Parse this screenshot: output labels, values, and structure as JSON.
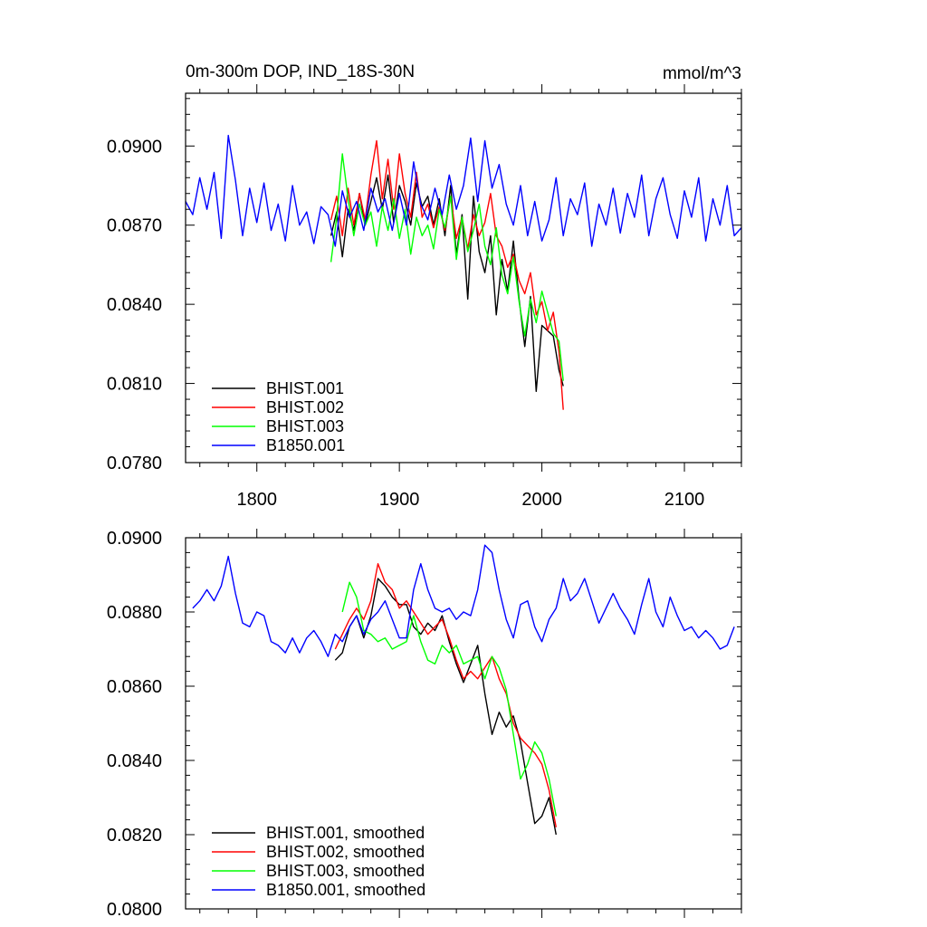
{
  "chart_data": [
    {
      "type": "line",
      "title": "0m-300m DOP, IND_18S-30N",
      "units": "mmol/m^3",
      "xlim": [
        1750,
        2140
      ],
      "ylim": [
        0.078,
        0.092
      ],
      "x_ticks": [
        1800,
        1900,
        2000,
        2100
      ],
      "x_tick_labels": [
        "1800",
        "1900",
        "2000",
        "2100"
      ],
      "y_ticks": [
        0.078,
        0.081,
        0.084,
        0.087,
        0.09
      ],
      "y_tick_labels": [
        "0.0780",
        "0.0810",
        "0.0840",
        "0.0870",
        "0.0900"
      ],
      "grid": false,
      "legend_position": "bottom-left",
      "series": [
        {
          "name": "BHIST.001",
          "color": "#000000",
          "x": [
            1852,
            1856,
            1860,
            1864,
            1868,
            1872,
            1876,
            1880,
            1884,
            1888,
            1892,
            1896,
            1900,
            1904,
            1908,
            1912,
            1916,
            1920,
            1924,
            1928,
            1932,
            1936,
            1940,
            1944,
            1948,
            1952,
            1956,
            1960,
            1964,
            1968,
            1972,
            1976,
            1980,
            1984,
            1988,
            1992,
            1996,
            2000,
            2004,
            2008,
            2012,
            2015
          ],
          "y": [
            0.0866,
            0.0875,
            0.0858,
            0.0876,
            0.0868,
            0.0882,
            0.087,
            0.0879,
            0.0888,
            0.0876,
            0.0889,
            0.0871,
            0.0885,
            0.0879,
            0.087,
            0.0886,
            0.0877,
            0.0881,
            0.087,
            0.088,
            0.0866,
            0.0885,
            0.0859,
            0.0874,
            0.0842,
            0.0881,
            0.086,
            0.0852,
            0.0866,
            0.0836,
            0.0857,
            0.0845,
            0.0864,
            0.0842,
            0.0824,
            0.0843,
            0.0807,
            0.0832,
            0.083,
            0.0828,
            0.0815,
            0.0809
          ]
        },
        {
          "name": "BHIST.002",
          "color": "#ff0000",
          "x": [
            1852,
            1856,
            1860,
            1864,
            1868,
            1872,
            1876,
            1880,
            1884,
            1888,
            1892,
            1896,
            1900,
            1904,
            1908,
            1912,
            1916,
            1920,
            1924,
            1928,
            1932,
            1936,
            1940,
            1944,
            1948,
            1952,
            1956,
            1960,
            1964,
            1968,
            1972,
            1976,
            1980,
            1984,
            1988,
            1992,
            1996,
            2000,
            2004,
            2008,
            2012,
            2015
          ],
          "y": [
            0.0872,
            0.0881,
            0.0866,
            0.0884,
            0.087,
            0.0882,
            0.0872,
            0.0889,
            0.0902,
            0.088,
            0.0895,
            0.0876,
            0.0897,
            0.0882,
            0.0873,
            0.089,
            0.0873,
            0.0878,
            0.0869,
            0.0877,
            0.0868,
            0.0881,
            0.0865,
            0.0873,
            0.0861,
            0.0874,
            0.0866,
            0.0871,
            0.0882,
            0.0866,
            0.0862,
            0.0854,
            0.0859,
            0.0849,
            0.0844,
            0.0852,
            0.0836,
            0.0841,
            0.083,
            0.0837,
            0.0822,
            0.08
          ]
        },
        {
          "name": "BHIST.003",
          "color": "#00ff00",
          "x": [
            1852,
            1856,
            1860,
            1864,
            1868,
            1872,
            1876,
            1880,
            1884,
            1888,
            1892,
            1896,
            1900,
            1904,
            1908,
            1912,
            1916,
            1920,
            1924,
            1928,
            1932,
            1936,
            1940,
            1944,
            1948,
            1952,
            1956,
            1960,
            1964,
            1968,
            1972,
            1976,
            1980,
            1984,
            1988,
            1992,
            1996,
            2000,
            2004,
            2008,
            2012,
            2015
          ],
          "y": [
            0.0856,
            0.0873,
            0.0897,
            0.088,
            0.0866,
            0.0878,
            0.087,
            0.0875,
            0.0862,
            0.0877,
            0.0868,
            0.088,
            0.0865,
            0.0876,
            0.0859,
            0.0873,
            0.0866,
            0.087,
            0.0861,
            0.0876,
            0.0869,
            0.0881,
            0.0857,
            0.0873,
            0.086,
            0.0868,
            0.0878,
            0.0862,
            0.0855,
            0.0869,
            0.0851,
            0.0844,
            0.0858,
            0.0841,
            0.0828,
            0.0842,
            0.0833,
            0.0845,
            0.0837,
            0.0829,
            0.0826,
            0.0811
          ]
        },
        {
          "name": "B1850.001",
          "color": "#0000ff",
          "x": [
            1750,
            1755,
            1760,
            1765,
            1770,
            1775,
            1780,
            1785,
            1790,
            1795,
            1800,
            1805,
            1810,
            1815,
            1820,
            1825,
            1830,
            1835,
            1840,
            1845,
            1850,
            1855,
            1860,
            1865,
            1870,
            1875,
            1880,
            1885,
            1890,
            1895,
            1900,
            1905,
            1910,
            1915,
            1920,
            1925,
            1930,
            1935,
            1940,
            1945,
            1950,
            1955,
            1960,
            1965,
            1970,
            1975,
            1980,
            1985,
            1990,
            1995,
            2000,
            2005,
            2010,
            2015,
            2020,
            2025,
            2030,
            2035,
            2040,
            2045,
            2050,
            2055,
            2060,
            2065,
            2070,
            2075,
            2080,
            2085,
            2090,
            2095,
            2100,
            2105,
            2110,
            2115,
            2120,
            2125,
            2130,
            2135,
            2140
          ],
          "y": [
            0.0879,
            0.0874,
            0.0888,
            0.0876,
            0.089,
            0.0865,
            0.0904,
            0.0887,
            0.0866,
            0.0884,
            0.0871,
            0.0886,
            0.0868,
            0.0878,
            0.0864,
            0.0885,
            0.087,
            0.0875,
            0.0863,
            0.0877,
            0.0874,
            0.0862,
            0.0883,
            0.0873,
            0.0879,
            0.0868,
            0.0884,
            0.0875,
            0.088,
            0.0868,
            0.0882,
            0.087,
            0.0894,
            0.0878,
            0.0872,
            0.0884,
            0.0874,
            0.0889,
            0.0876,
            0.0885,
            0.0903,
            0.0879,
            0.0902,
            0.0884,
            0.0893,
            0.0878,
            0.087,
            0.0885,
            0.0866,
            0.0879,
            0.0864,
            0.0872,
            0.0888,
            0.0866,
            0.088,
            0.0874,
            0.0886,
            0.0862,
            0.0878,
            0.087,
            0.0884,
            0.0867,
            0.0882,
            0.0873,
            0.0889,
            0.0866,
            0.088,
            0.0888,
            0.0874,
            0.0865,
            0.0883,
            0.0873,
            0.0888,
            0.0864,
            0.088,
            0.087,
            0.0885,
            0.0866,
            0.0869
          ]
        }
      ]
    },
    {
      "type": "line",
      "xlim": [
        1750,
        2140
      ],
      "ylim": [
        0.08,
        0.09
      ],
      "x_ticks": [
        1800,
        1900,
        2000,
        2100
      ],
      "x_tick_labels": [],
      "y_ticks": [
        0.08,
        0.082,
        0.084,
        0.086,
        0.088,
        0.09
      ],
      "y_tick_labels": [
        "0.0800",
        "0.0820",
        "0.0840",
        "0.0860",
        "0.0880",
        "0.0900"
      ],
      "grid": false,
      "legend_position": "bottom-left",
      "series": [
        {
          "name": "BHIST.001, smoothed",
          "color": "#000000",
          "x": [
            1855,
            1860,
            1865,
            1870,
            1875,
            1880,
            1885,
            1890,
            1895,
            1900,
            1905,
            1910,
            1915,
            1920,
            1925,
            1930,
            1935,
            1940,
            1945,
            1950,
            1955,
            1960,
            1965,
            1970,
            1975,
            1980,
            1985,
            1990,
            1995,
            2000,
            2005,
            2010
          ],
          "y": [
            0.0867,
            0.0869,
            0.0876,
            0.0879,
            0.0873,
            0.0879,
            0.0889,
            0.0887,
            0.0884,
            0.0882,
            0.0882,
            0.0876,
            0.0874,
            0.0877,
            0.0875,
            0.0879,
            0.0872,
            0.0866,
            0.0861,
            0.0866,
            0.0871,
            0.0858,
            0.0847,
            0.0853,
            0.0849,
            0.0852,
            0.0845,
            0.0834,
            0.0823,
            0.0825,
            0.083,
            0.082
          ]
        },
        {
          "name": "BHIST.002, smoothed",
          "color": "#ff0000",
          "x": [
            1855,
            1860,
            1865,
            1870,
            1875,
            1880,
            1885,
            1890,
            1895,
            1900,
            1905,
            1910,
            1915,
            1920,
            1925,
            1930,
            1935,
            1940,
            1945,
            1950,
            1955,
            1960,
            1965,
            1970,
            1975,
            1980,
            1985,
            1990,
            1995,
            2000,
            2005,
            2010
          ],
          "y": [
            0.087,
            0.0874,
            0.0878,
            0.0881,
            0.0878,
            0.0883,
            0.0893,
            0.0888,
            0.0886,
            0.0881,
            0.0883,
            0.088,
            0.0877,
            0.0874,
            0.0876,
            0.0878,
            0.0873,
            0.0867,
            0.0862,
            0.0864,
            0.0862,
            0.0865,
            0.0868,
            0.0862,
            0.0858,
            0.085,
            0.0846,
            0.0844,
            0.0842,
            0.0839,
            0.0832,
            0.0822
          ]
        },
        {
          "name": "BHIST.003, smoothed",
          "color": "#00ff00",
          "x": [
            1860,
            1865,
            1870,
            1875,
            1880,
            1885,
            1890,
            1895,
            1900,
            1905,
            1910,
            1915,
            1920,
            1925,
            1930,
            1935,
            1940,
            1945,
            1950,
            1955,
            1960,
            1965,
            1970,
            1975,
            1980,
            1985,
            1990,
            1995,
            2000,
            2005,
            2010
          ],
          "y": [
            0.088,
            0.0888,
            0.0884,
            0.0875,
            0.0874,
            0.0872,
            0.0873,
            0.087,
            0.0871,
            0.0872,
            0.0879,
            0.0872,
            0.0867,
            0.0866,
            0.0871,
            0.0869,
            0.0871,
            0.0866,
            0.0867,
            0.0868,
            0.0862,
            0.0868,
            0.0865,
            0.0859,
            0.0847,
            0.0835,
            0.0839,
            0.0845,
            0.0842,
            0.0835,
            0.0825
          ]
        },
        {
          "name": "B1850.001, smoothed",
          "color": "#0000ff",
          "x": [
            1755,
            1760,
            1765,
            1770,
            1775,
            1780,
            1785,
            1790,
            1795,
            1800,
            1805,
            1810,
            1815,
            1820,
            1825,
            1830,
            1835,
            1840,
            1845,
            1850,
            1855,
            1860,
            1865,
            1870,
            1875,
            1880,
            1885,
            1890,
            1895,
            1900,
            1905,
            1910,
            1915,
            1920,
            1925,
            1930,
            1935,
            1940,
            1945,
            1950,
            1955,
            1960,
            1965,
            1970,
            1975,
            1980,
            1985,
            1990,
            1995,
            2000,
            2005,
            2010,
            2015,
            2020,
            2025,
            2030,
            2035,
            2040,
            2045,
            2050,
            2055,
            2060,
            2065,
            2070,
            2075,
            2080,
            2085,
            2090,
            2095,
            2100,
            2105,
            2110,
            2115,
            2120,
            2125,
            2130,
            2135
          ],
          "y": [
            0.0881,
            0.0883,
            0.0886,
            0.0883,
            0.0887,
            0.0895,
            0.0885,
            0.0877,
            0.0876,
            0.088,
            0.0879,
            0.0872,
            0.0871,
            0.0869,
            0.0873,
            0.0869,
            0.0873,
            0.0875,
            0.0872,
            0.0868,
            0.0874,
            0.0872,
            0.0876,
            0.0879,
            0.0874,
            0.0878,
            0.088,
            0.0883,
            0.0878,
            0.0873,
            0.0873,
            0.0886,
            0.0893,
            0.0886,
            0.0881,
            0.088,
            0.0881,
            0.0878,
            0.088,
            0.0879,
            0.0886,
            0.0898,
            0.0896,
            0.0886,
            0.0878,
            0.0873,
            0.0882,
            0.0883,
            0.0876,
            0.0872,
            0.0878,
            0.0881,
            0.0889,
            0.0883,
            0.0885,
            0.0889,
            0.0883,
            0.0877,
            0.0881,
            0.0885,
            0.0881,
            0.0878,
            0.0874,
            0.0882,
            0.0889,
            0.088,
            0.0876,
            0.0884,
            0.0879,
            0.0875,
            0.0876,
            0.0873,
            0.0875,
            0.0873,
            0.087,
            0.0871,
            0.0876
          ]
        }
      ]
    }
  ]
}
